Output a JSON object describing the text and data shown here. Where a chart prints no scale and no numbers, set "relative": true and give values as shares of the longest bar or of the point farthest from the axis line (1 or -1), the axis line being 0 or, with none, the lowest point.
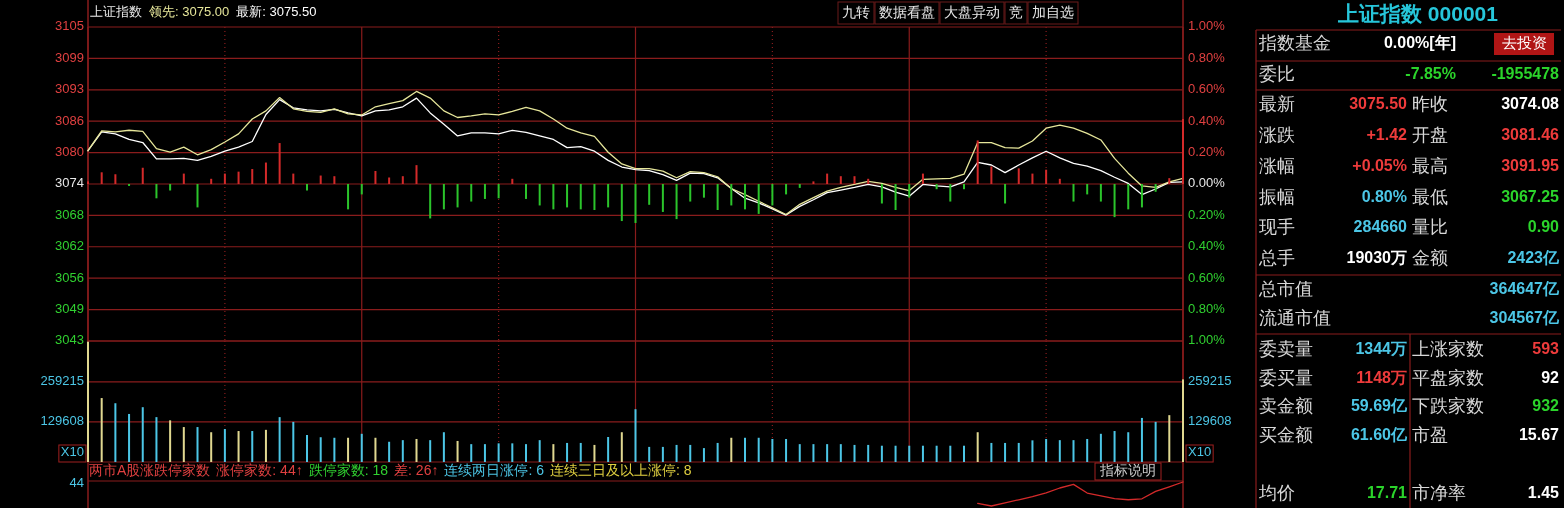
{
  "chart_data": [
    {
      "type": "line",
      "title": "上证指数",
      "annotations": [
        "领先: 3075.00",
        "最新: 3075.50",
        "九转",
        "数据看盘",
        "大盘异动",
        "竞",
        "加自选"
      ],
      "categories": [
        null,
        null,
        null,
        null,
        null,
        null,
        null,
        null,
        null,
        null,
        null,
        null,
        null,
        null,
        null,
        null,
        null,
        null,
        null,
        null,
        null,
        null,
        null,
        null,
        null,
        null,
        null,
        null,
        null,
        null,
        null,
        null,
        null,
        null,
        null,
        null,
        null,
        null,
        null,
        null,
        null,
        null,
        null,
        null,
        null,
        null,
        null,
        null,
        null,
        null,
        null,
        null,
        null,
        null,
        null,
        null,
        null,
        null,
        null,
        null,
        null,
        null,
        null,
        null,
        null,
        null,
        null,
        null,
        null,
        null,
        null,
        null,
        null,
        null,
        null,
        null,
        null,
        null,
        null,
        null,
        null
      ],
      "ylim": [
        3043.34,
        3104.82
      ],
      "yticks": [
        {
          "value": 3043.34,
          "label": "3043"
        },
        {
          "value": 3049.49,
          "label": "3049"
        },
        {
          "value": 3055.64,
          "label": "3056"
        },
        {
          "value": 3061.79,
          "label": "3062"
        },
        {
          "value": 3067.93,
          "label": "3068"
        },
        {
          "value": 3074.08,
          "label": "3074"
        },
        {
          "value": 3080.23,
          "label": "3080"
        },
        {
          "value": 3086.38,
          "label": "3086"
        },
        {
          "value": 3092.52,
          "label": "3093"
        },
        {
          "value": 3098.67,
          "label": "3099"
        },
        {
          "value": 3104.82,
          "label": "3105"
        }
      ],
      "y2lim": [
        -1,
        1
      ],
      "y2ticks": [
        {
          "value": -1,
          "label": "1.00%"
        },
        {
          "value": -0.8,
          "label": "0.80%"
        },
        {
          "value": -0.6,
          "label": "0.60%"
        },
        {
          "value": -0.4,
          "label": "0.40%"
        },
        {
          "value": -0.2,
          "label": "0.20%"
        },
        {
          "value": 0,
          "label": "0.00%"
        },
        {
          "value": 0.2,
          "label": "0.20%"
        },
        {
          "value": 0.4,
          "label": "0.40%"
        },
        {
          "value": 0.6,
          "label": "0.60%"
        },
        {
          "value": 0.8,
          "label": "0.80%"
        },
        {
          "value": 1,
          "label": "1.00%"
        }
      ],
      "tick_labels": "y",
      "grid": true,
      "series": [
        {
          "color": "#ffffff",
          "values": [
            3080.6,
            3084.3,
            3083.9,
            3082.8,
            3082.2,
            3079.0,
            3079.0,
            3079.1,
            3078.7,
            3079.5,
            3080.5,
            3081.3,
            3082.4,
            3087.7,
            3090.6,
            3089.0,
            3088.6,
            3088.4,
            3088.7,
            3088.0,
            3087.4,
            3088.4,
            3088.6,
            3089.2,
            3090.9,
            3088.0,
            3085.8,
            3083.5,
            3084.1,
            3084.1,
            3083.9,
            3084.6,
            3084.2,
            3083.5,
            3082.8,
            3081.2,
            3081.4,
            3080.5,
            3078.7,
            3077.4,
            3076.9,
            3076.7,
            3075.9,
            3074.8,
            3076.2,
            3076.1,
            3075.3,
            3073.2,
            3071.3,
            3070.4,
            3069.2,
            3068.0,
            3069.7,
            3071.0,
            3072.4,
            3072.9,
            3073.4,
            3074.0,
            3073.5,
            3072.5,
            3071.7,
            3074.0,
            3073.7,
            3073.5,
            3074.5,
            3078.3,
            3077.8,
            3076.3,
            3077.8,
            3079.2,
            3080.5,
            3079.2,
            3078.1,
            3077.6,
            3076.7,
            3075.4,
            3074.2,
            3072.0,
            3073.1,
            3074.4,
            3074.5
          ]
        },
        {
          "color": "#e6e69a",
          "values": [
            3080.6,
            3084.5,
            3084.3,
            3084.6,
            3084.4,
            3081.0,
            3080.3,
            3081.3,
            3079.8,
            3080.8,
            3082.3,
            3083.9,
            3086.8,
            3088.4,
            3091.0,
            3088.8,
            3088.3,
            3088.1,
            3088.8,
            3087.8,
            3087.6,
            3089.2,
            3089.8,
            3090.4,
            3092.2,
            3090.9,
            3088.4,
            3087.1,
            3087.4,
            3087.8,
            3087.6,
            3088.3,
            3089.1,
            3088.4,
            3086.8,
            3085.0,
            3084.1,
            3083.4,
            3080.3,
            3078.0,
            3077.1,
            3077.1,
            3076.6,
            3075.3,
            3076.5,
            3076.3,
            3075.5,
            3073.2,
            3072.0,
            3070.7,
            3069.4,
            3068.1,
            3070.1,
            3071.4,
            3072.7,
            3073.4,
            3074.0,
            3074.6,
            3074.2,
            3073.4,
            3072.8,
            3075.0,
            3075.1,
            3075.2,
            3076.0,
            3082.2,
            3082.2,
            3081.2,
            3081.1,
            3082.5,
            3085.0,
            3085.6,
            3085.0,
            3084.0,
            3082.7,
            3079.1,
            3076.2,
            3073.7,
            3073.4,
            3074.5,
            3075.2
          ]
        }
      ]
    },
    {
      "type": "bar",
      "relative": true,
      "categories": [
        null,
        null,
        null,
        null,
        null,
        null,
        null,
        null,
        null,
        null,
        null,
        null,
        null,
        null,
        null,
        null,
        null,
        null,
        null,
        null,
        null,
        null,
        null,
        null,
        null,
        null,
        null,
        null,
        null,
        null,
        null,
        null,
        null,
        null,
        null,
        null,
        null,
        null,
        null,
        null,
        null,
        null,
        null,
        null,
        null,
        null,
        null,
        null,
        null,
        null,
        null,
        null,
        null,
        null,
        null,
        null,
        null,
        null,
        null,
        null,
        null,
        null,
        null,
        null,
        null,
        null,
        null,
        null,
        null,
        null,
        null,
        null,
        null,
        null,
        null,
        null,
        null,
        null,
        null,
        null,
        null
      ],
      "series": [
        {
          "values": [
            0.04,
            0.18,
            0.15,
            -0.03,
            0.25,
            -0.22,
            -0.1,
            0.16,
            -0.36,
            0.08,
            0.16,
            0.19,
            0.23,
            0.33,
            0.63,
            0.16,
            -0.1,
            0.13,
            0.12,
            -0.39,
            -0.16,
            0.2,
            0.1,
            0.12,
            0.29,
            -0.53,
            -0.39,
            -0.36,
            -0.27,
            -0.23,
            -0.22,
            0.08,
            -0.23,
            -0.33,
            -0.39,
            -0.36,
            -0.39,
            -0.4,
            -0.36,
            -0.57,
            -0.6,
            -0.32,
            -0.43,
            -0.54,
            -0.27,
            -0.21,
            -0.4,
            -0.33,
            -0.39,
            -0.46,
            -0.33,
            -0.16,
            -0.06,
            0.04,
            0.16,
            0.12,
            0.12,
            0.08,
            -0.3,
            -0.4,
            -0.21,
            0.16,
            -0.08,
            -0.27,
            -0.08,
            0.67,
            0.27,
            -0.3,
            0.24,
            0.16,
            0.22,
            0.08,
            -0.27,
            -0.16,
            -0.27,
            -0.51,
            -0.39,
            -0.36,
            -0.12,
            0.09,
            1
          ],
          "colors": [
            "#d42a2a",
            "#d42a2a",
            "#d42a2a",
            "#2bc42b",
            "#d42a2a",
            "#2bc42b",
            "#2bc42b",
            "#d42a2a",
            "#2bc42b",
            "#d42a2a",
            "#d42a2a",
            "#d42a2a",
            "#d42a2a",
            "#d42a2a",
            "#d42a2a",
            "#d42a2a",
            "#2bc42b",
            "#d42a2a",
            "#d42a2a",
            "#2bc42b",
            "#2bc42b",
            "#d42a2a",
            "#d42a2a",
            "#d42a2a",
            "#d42a2a",
            "#2bc42b",
            "#2bc42b",
            "#2bc42b",
            "#2bc42b",
            "#2bc42b",
            "#2bc42b",
            "#d42a2a",
            "#2bc42b",
            "#2bc42b",
            "#2bc42b",
            "#2bc42b",
            "#2bc42b",
            "#2bc42b",
            "#2bc42b",
            "#2bc42b",
            "#2bc42b",
            "#2bc42b",
            "#2bc42b",
            "#2bc42b",
            "#2bc42b",
            "#2bc42b",
            "#2bc42b",
            "#2bc42b",
            "#2bc42b",
            "#2bc42b",
            "#2bc42b",
            "#2bc42b",
            "#2bc42b",
            "#d42a2a",
            "#d42a2a",
            "#d42a2a",
            "#d42a2a",
            "#d42a2a",
            "#2bc42b",
            "#2bc42b",
            "#2bc42b",
            "#d42a2a",
            "#2bc42b",
            "#2bc42b",
            "#2bc42b",
            "#d42a2a",
            "#d42a2a",
            "#2bc42b",
            "#d42a2a",
            "#d42a2a",
            "#d42a2a",
            "#d42a2a",
            "#2bc42b",
            "#2bc42b",
            "#2bc42b",
            "#2bc42b",
            "#2bc42b",
            "#2bc42b",
            "#2bc42b",
            "#d42a2a",
            "#d42a2a"
          ]
        }
      ]
    },
    {
      "type": "bar",
      "annotations": [
        "X10"
      ],
      "categories": [
        null,
        null,
        null,
        null,
        null,
        null,
        null,
        null,
        null,
        null,
        null,
        null,
        null,
        null,
        null,
        null,
        null,
        null,
        null,
        null,
        null,
        null,
        null,
        null,
        null,
        null,
        null,
        null,
        null,
        null,
        null,
        null,
        null,
        null,
        null,
        null,
        null,
        null,
        null,
        null,
        null,
        null,
        null,
        null,
        null,
        null,
        null,
        null,
        null,
        null,
        null,
        null,
        null,
        null,
        null,
        null,
        null,
        null,
        null,
        null,
        null,
        null,
        null,
        null,
        null,
        null,
        null,
        null,
        null,
        null,
        null,
        null,
        null,
        null,
        null,
        null,
        null,
        null,
        null,
        null,
        null
      ],
      "ylim": [
        0,
        391000
      ],
      "yticks": [
        129608,
        259215
      ],
      "y2lim": [
        0,
        391000
      ],
      "y2ticks": [
        129608,
        259215
      ],
      "tick_labels": "y",
      "grid": true,
      "series": [
        {
          "values": [
            388700,
            206600,
            189900,
            155200,
            177100,
            145000,
            134700,
            112900,
            112900,
            96200,
            106500,
            100100,
            100100,
            103900,
            145000,
            129600,
            87200,
            80000,
            78300,
            78300,
            91100,
            78300,
            65400,
            70600,
            74400,
            70600,
            96200,
            68000,
            57700,
            57700,
            60300,
            60300,
            57700,
            70600,
            57700,
            61600,
            61600,
            55200,
            80800,
            96200,
            170600,
            48800,
            48800,
            55200,
            55200,
            44900,
            61600,
            78300,
            78300,
            78300,
            74400,
            74400,
            57700,
            57700,
            57700,
            57700,
            55200,
            55200,
            52600,
            52600,
            52600,
            52600,
            52600,
            52600,
            52600,
            96200,
            61600,
            61600,
            61600,
            70000,
            74400,
            70600,
            70600,
            74400,
            91100,
            100100,
            96200,
            142400,
            129600,
            151400,
            266900
          ],
          "colors": [
            "#e0d890",
            "#e0d890",
            "#4cc6e6",
            "#4cc6e6",
            "#4cc6e6",
            "#4cc6e6",
            "#e0d890",
            "#e0d890",
            "#4cc6e6",
            "#e0d890",
            "#4cc6e6",
            "#e0d890",
            "#4cc6e6",
            "#e0d890",
            "#4cc6e6",
            "#4cc6e6",
            "#4cc6e6",
            "#4cc6e6",
            "#4cc6e6",
            "#e0d890",
            "#4cc6e6",
            "#e0d890",
            "#4cc6e6",
            "#4cc6e6",
            "#e0d890",
            "#4cc6e6",
            "#4cc6e6",
            "#e0d890",
            "#4cc6e6",
            "#4cc6e6",
            "#4cc6e6",
            "#4cc6e6",
            "#4cc6e6",
            "#4cc6e6",
            "#e0d890",
            "#4cc6e6",
            "#4cc6e6",
            "#e0d890",
            "#4cc6e6",
            "#e0d890",
            "#4cc6e6",
            "#4cc6e6",
            "#4cc6e6",
            "#4cc6e6",
            "#4cc6e6",
            "#4cc6e6",
            "#4cc6e6",
            "#e0d890",
            "#4cc6e6",
            "#4cc6e6",
            "#4cc6e6",
            "#4cc6e6",
            "#4cc6e6",
            "#4cc6e6",
            "#4cc6e6",
            "#4cc6e6",
            "#4cc6e6",
            "#4cc6e6",
            "#4cc6e6",
            "#4cc6e6",
            "#4cc6e6",
            "#4cc6e6",
            "#4cc6e6",
            "#4cc6e6",
            "#4cc6e6",
            "#e0d890",
            "#4cc6e6",
            "#4cc6e6",
            "#4cc6e6",
            "#4cc6e6",
            "#4cc6e6",
            "#4cc6e6",
            "#4cc6e6",
            "#4cc6e6",
            "#4cc6e6",
            "#4cc6e6",
            "#4cc6e6",
            "#4cc6e6",
            "#4cc6e6",
            "#e0d890",
            "#e0d890"
          ]
        }
      ]
    },
    {
      "type": "line",
      "relative": true,
      "annotations": [
        "两市A股涨跌停家数",
        "涨停家数: 44↑",
        "跌停家数: 18",
        "差: 26↑",
        "连续两日涨停: 6",
        "连续三日及以上涨停: 8",
        "指标说明",
        "44"
      ],
      "categories": [
        null,
        null,
        null,
        null,
        null,
        null,
        null,
        null,
        null,
        null,
        null,
        null,
        null,
        null,
        null,
        null,
        null,
        null,
        null,
        null,
        null,
        null,
        null,
        null,
        null,
        null,
        null,
        null,
        null,
        null,
        null,
        null,
        null,
        null,
        null,
        null,
        null,
        null,
        null,
        null,
        null,
        null,
        null,
        null,
        null,
        null,
        null,
        null,
        null,
        null,
        null,
        null,
        null,
        null,
        null,
        null,
        null,
        null,
        null,
        null,
        null,
        null,
        null,
        null,
        null,
        null,
        null,
        null,
        null,
        null,
        null,
        null,
        null,
        null,
        null,
        null,
        null,
        null,
        null,
        null,
        null
      ],
      "series": [
        {
          "color": "#d42a2a",
          "values": [
            null,
            null,
            null,
            null,
            null,
            null,
            null,
            null,
            null,
            null,
            null,
            null,
            null,
            null,
            null,
            null,
            null,
            null,
            null,
            null,
            null,
            null,
            null,
            null,
            null,
            null,
            null,
            null,
            null,
            null,
            null,
            null,
            null,
            null,
            null,
            null,
            null,
            null,
            null,
            null,
            null,
            null,
            null,
            null,
            null,
            null,
            null,
            null,
            null,
            null,
            null,
            null,
            null,
            null,
            null,
            null,
            null,
            null,
            null,
            null,
            null,
            null,
            null,
            null,
            null,
            0.11,
            0,
            0.13,
            0.26,
            0.39,
            0.55,
            0.75,
            0.9,
            0.54,
            0.42,
            0.31,
            0.26,
            0.3,
            0.61,
            0.8,
            1
          ]
        }
      ]
    },
    {
      "type": "other",
      "title": "上证指数 000001",
      "annotations": [
        "指数基金",
        "0.00%[年]",
        "去投资",
        "委比",
        "-7.85%",
        "-1955478",
        "最新",
        "3075.50",
        "昨收",
        "3074.08",
        "涨跌",
        "+1.42",
        "开盘",
        "3081.46",
        "涨幅",
        "+0.05%",
        "最高",
        "3091.95",
        "振幅",
        "0.80%",
        "最低",
        "3067.25",
        "现手",
        "284660",
        "量比",
        "0.90",
        "总手",
        "19030万",
        "金额",
        "2423亿",
        "总市值",
        "364647亿",
        "流通市值",
        "304567亿",
        "委卖量",
        "1344万",
        "上涨家数",
        "593",
        "委买量",
        "1148万",
        "平盘家数",
        "92",
        "卖金额",
        "59.69亿",
        "下跌家数",
        "932",
        "买金额",
        "61.60亿",
        "市盈",
        "15.67",
        "均价",
        "17.71",
        "市净率",
        "1.45"
      ],
      "colors": [
        "#d8d8d8",
        "#ffffff",
        "#ffffff",
        "#d8d8d8",
        "#2bd42b",
        "#2bd42b",
        "#d8d8d8",
        "#ee3b3b",
        "#d8d8d8",
        "#ffffff",
        "#d8d8d8",
        "#ee3b3b",
        "#d8d8d8",
        "#ee3b3b",
        "#d8d8d8",
        "#ee3b3b",
        "#d8d8d8",
        "#ee3b3b",
        "#d8d8d8",
        "#4cc6e6",
        "#d8d8d8",
        "#2bd42b",
        "#d8d8d8",
        "#4cc6e6",
        "#d8d8d8",
        "#2bd42b",
        "#d8d8d8",
        "#ffffff",
        "#d8d8d8",
        "#4cc6e6",
        "#d8d8d8",
        "#4cc6e6",
        "#d8d8d8",
        "#4cc6e6",
        "#d8d8d8",
        "#4cc6e6",
        "#d8d8d8",
        "#ee3b3b",
        "#d8d8d8",
        "#ee3b3b",
        "#d8d8d8",
        "#ffffff",
        "#d8d8d8",
        "#4cc6e6",
        "#d8d8d8",
        "#2bd42b",
        "#d8d8d8",
        "#4cc6e6",
        "#d8d8d8",
        "#ffffff",
        "#d8d8d8",
        "#2bd42b",
        "#d8d8d8",
        "#ffffff"
      ]
    }
  ]
}
